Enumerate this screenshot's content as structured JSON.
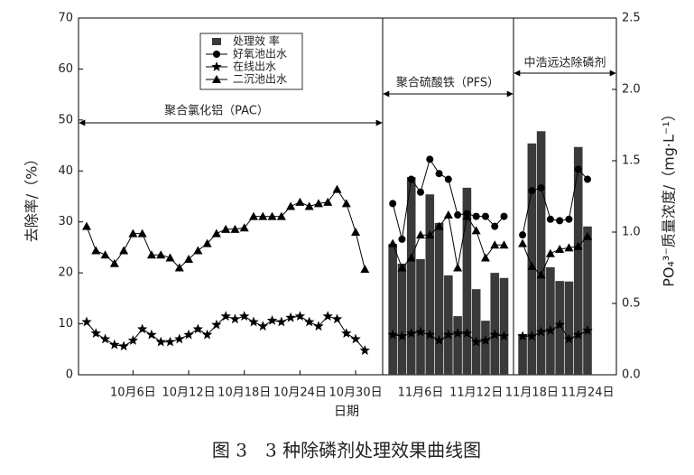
{
  "chart_data": {
    "type": "combo",
    "caption": "图 3　3 种除磷剂处理效果曲线图",
    "x_label": "日期",
    "y_label": "去除率/（%）",
    "y2_label": "PO₄³⁻质量浓度/（mg·L⁻¹）",
    "annotations": [
      "聚合氯化铝（PAC）",
      "聚合硫酸铁（PFS）",
      "中浩远达除磷剂"
    ],
    "categories": [
      null,
      null,
      null,
      null,
      null,
      "10月6日",
      null,
      null,
      null,
      null,
      null,
      "10月12日",
      null,
      null,
      null,
      null,
      null,
      "10月18日",
      null,
      null,
      null,
      null,
      null,
      "10月24日",
      null,
      null,
      null,
      null,
      null,
      "10月30日",
      null,
      null,
      null,
      null,
      null,
      null,
      "11月6日",
      null,
      null,
      null,
      null,
      null,
      "11月12日",
      null,
      null,
      null,
      null,
      null,
      "11月18日",
      null,
      null,
      null,
      null,
      null,
      "11月24日"
    ],
    "ylim": [
      0,
      70
    ],
    "yticks": [
      0,
      10,
      20,
      30,
      40,
      50,
      60,
      70
    ],
    "y2lim": [
      0,
      2.5
    ],
    "y2ticks": [
      {
        "value": 0,
        "label": "0.0"
      },
      0.5,
      {
        "value": 1,
        "label": "1.0"
      },
      1.5,
      {
        "value": 2,
        "label": "2.0"
      },
      2.5
    ],
    "series": [
      {
        "name": "处理效 率",
        "mark": "bar",
        "marker": "square",
        "color": "#3a3a3a",
        "values": [
          null,
          null,
          null,
          null,
          null,
          null,
          null,
          null,
          null,
          null,
          null,
          null,
          null,
          null,
          null,
          null,
          null,
          null,
          null,
          null,
          null,
          null,
          null,
          null,
          null,
          null,
          null,
          null,
          null,
          null,
          null,
          null,
          null,
          25.7,
          21.8,
          38.8,
          22.7,
          35.4,
          29.8,
          19.5,
          11.5,
          36.7,
          16.8,
          10.6,
          20.0,
          19.0,
          null,
          8.0,
          45.4,
          47.8,
          21.1,
          18.4,
          18.3,
          44.7,
          29.1
        ]
      },
      {
        "name": "好氧池出水",
        "mark": "line",
        "marker": "circle",
        "color": "#000000",
        "axis": "y2",
        "values": [
          null,
          null,
          null,
          null,
          null,
          null,
          null,
          null,
          null,
          null,
          null,
          null,
          null,
          null,
          null,
          null,
          null,
          null,
          null,
          null,
          null,
          null,
          null,
          null,
          null,
          null,
          null,
          null,
          null,
          null,
          null,
          null,
          null,
          1.2,
          0.95,
          1.37,
          1.28,
          1.51,
          1.41,
          1.37,
          1.12,
          1.13,
          1.11,
          1.11,
          1.04,
          1.11,
          null,
          0.98,
          1.29,
          1.31,
          1.09,
          1.08,
          1.09,
          1.44,
          1.37
        ]
      },
      {
        "name": "在线出水",
        "mark": "line",
        "marker": "star",
        "color": "#000000",
        "axis": "y2",
        "values": [
          0.37,
          0.29,
          0.25,
          0.21,
          0.2,
          0.24,
          0.32,
          0.28,
          0.23,
          0.23,
          0.25,
          0.28,
          0.32,
          0.28,
          0.35,
          0.41,
          0.39,
          0.41,
          0.37,
          0.34,
          0.38,
          0.37,
          0.4,
          0.41,
          0.37,
          0.34,
          0.41,
          0.39,
          0.29,
          0.25,
          0.17,
          null,
          null,
          0.28,
          0.27,
          0.29,
          0.3,
          0.28,
          0.24,
          0.28,
          0.29,
          0.29,
          0.23,
          0.24,
          0.28,
          0.27,
          null,
          0.27,
          0.27,
          0.3,
          0.31,
          0.35,
          0.25,
          0.28,
          0.31
        ]
      },
      {
        "name": "二沉池出水",
        "mark": "line",
        "marker": "triangle",
        "color": "#000000",
        "axis": "y2",
        "values": [
          1.04,
          0.87,
          0.84,
          0.78,
          0.87,
          0.99,
          0.99,
          0.84,
          0.84,
          0.82,
          0.75,
          0.81,
          0.87,
          0.92,
          0.99,
          1.02,
          1.02,
          1.03,
          1.11,
          1.11,
          1.11,
          1.11,
          1.18,
          1.21,
          1.18,
          1.2,
          1.21,
          1.3,
          1.2,
          1.0,
          0.74,
          null,
          null,
          0.92,
          0.75,
          0.82,
          0.98,
          0.98,
          1.04,
          1.12,
          0.75,
          1.11,
          1.01,
          0.82,
          0.91,
          0.91,
          null,
          0.92,
          0.76,
          0.7,
          0.85,
          0.88,
          0.89,
          0.9,
          0.97
        ]
      }
    ]
  }
}
